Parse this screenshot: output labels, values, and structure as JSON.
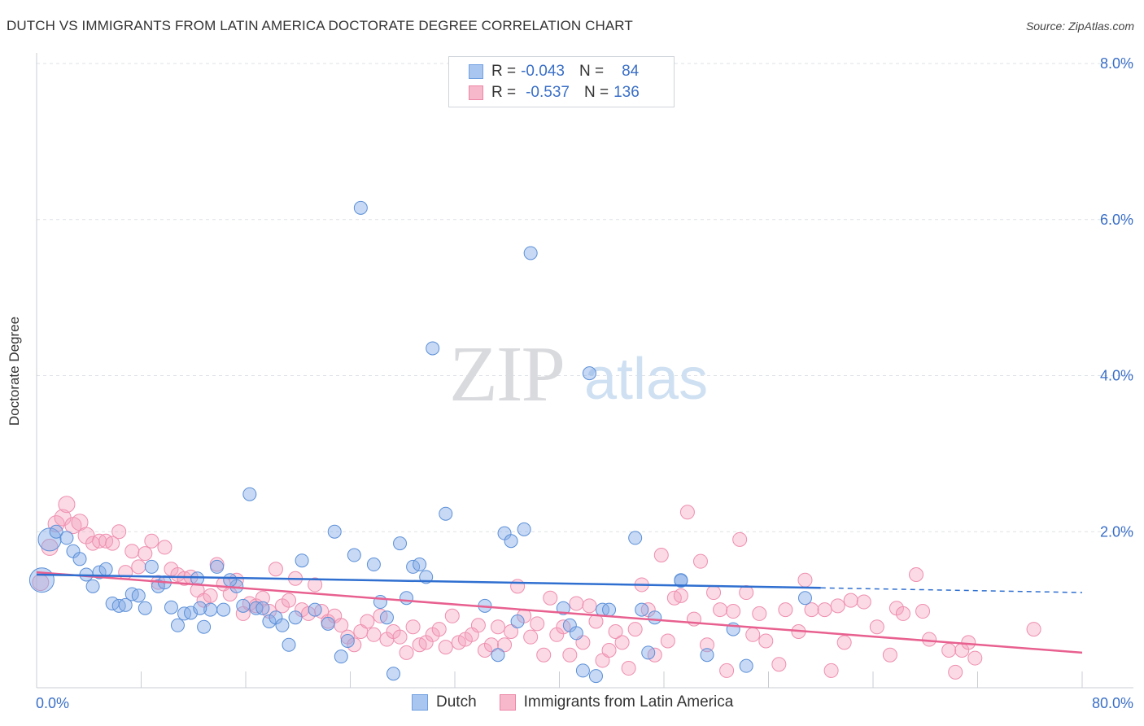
{
  "header": {
    "title": "DUTCH VS IMMIGRANTS FROM LATIN AMERICA DOCTORATE DEGREE CORRELATION CHART",
    "source": "Source: ZipAtlas.com"
  },
  "watermark": {
    "zip": "ZIP",
    "atlas": "atlas"
  },
  "legend": {
    "rows": [
      {
        "r_label": "R =",
        "r_value": "-0.043",
        "n_label": "N =",
        "n_value": "84",
        "color": "#a9c6f0",
        "border": "#6f9fe0"
      },
      {
        "r_label": "R =",
        "r_value": "-0.537",
        "n_label": "N =",
        "n_value": "136",
        "color": "#f7b8cb",
        "border": "#ec86a6"
      }
    ]
  },
  "bottom_legend": [
    {
      "label": "Dutch",
      "color": "#a9c6f0",
      "border": "#6f9fe0"
    },
    {
      "label": "Immigrants from Latin America",
      "color": "#f7b8cb",
      "border": "#ec86a6"
    }
  ],
  "colors": {
    "dutch_fill": "rgba(130,170,230,0.45)",
    "dutch_stroke": "#5b8fd8",
    "dutch_line": "#2f6fd0",
    "latin_fill": "rgba(245,160,190,0.40)",
    "latin_stroke": "#ee8fae",
    "latin_line": "#e8608f",
    "axis_label": "#3a6fc7",
    "grid": "#dde1e6"
  },
  "chart_data": {
    "type": "scatter",
    "xlabel": "",
    "ylabel": "Doctorate Degree",
    "xlim": [
      0,
      80
    ],
    "ylim": [
      0,
      8
    ],
    "x_tick_labels": [
      "0.0%",
      "80.0%"
    ],
    "y_tick_labels": [
      "2.0%",
      "4.0%",
      "6.0%",
      "8.0%"
    ],
    "y_ticks": [
      2,
      4,
      6,
      8
    ],
    "series": [
      {
        "name": "Dutch",
        "trend": {
          "x0": 0,
          "y0": 1.45,
          "x1": 60,
          "y1": 1.28,
          "dash_to_x": 80,
          "dash_to_y": 1.22
        },
        "points": [
          [
            0.4,
            1.38
          ],
          [
            1,
            1.9
          ],
          [
            1.5,
            2.0
          ],
          [
            2.3,
            1.92
          ],
          [
            2.8,
            1.75
          ],
          [
            3.3,
            1.65
          ],
          [
            3.8,
            1.45
          ],
          [
            4.3,
            1.3
          ],
          [
            4.8,
            1.48
          ],
          [
            5.3,
            1.52
          ],
          [
            5.8,
            1.08
          ],
          [
            6.3,
            1.05
          ],
          [
            6.8,
            1.06
          ],
          [
            7.3,
            1.2
          ],
          [
            7.8,
            1.18
          ],
          [
            8.3,
            1.02
          ],
          [
            8.8,
            1.55
          ],
          [
            9.3,
            1.3
          ],
          [
            9.8,
            1.35
          ],
          [
            10.3,
            1.03
          ],
          [
            10.8,
            0.8
          ],
          [
            11.3,
            0.95
          ],
          [
            11.8,
            0.96
          ],
          [
            12.3,
            1.4
          ],
          [
            12.8,
            0.78
          ],
          [
            13.3,
            1.0
          ],
          [
            13.8,
            1.55
          ],
          [
            14.3,
            1.0
          ],
          [
            15.3,
            1.3
          ],
          [
            15.8,
            1.05
          ],
          [
            16.3,
            2.48
          ],
          [
            16.8,
            1.02
          ],
          [
            17.3,
            1.02
          ],
          [
            17.8,
            0.85
          ],
          [
            18.3,
            0.9
          ],
          [
            18.8,
            0.8
          ],
          [
            19.3,
            0.55
          ],
          [
            19.8,
            0.9
          ],
          [
            20.3,
            1.63
          ],
          [
            21.3,
            1.0
          ],
          [
            22.3,
            0.82
          ],
          [
            22.8,
            2.0
          ],
          [
            23.3,
            0.4
          ],
          [
            23.8,
            0.6
          ],
          [
            24.3,
            1.7
          ],
          [
            24.8,
            6.15
          ],
          [
            25.8,
            1.58
          ],
          [
            26.3,
            1.1
          ],
          [
            26.8,
            0.9
          ],
          [
            27.3,
            0.18
          ],
          [
            27.8,
            1.85
          ],
          [
            28.3,
            1.15
          ],
          [
            28.8,
            1.55
          ],
          [
            29.3,
            1.58
          ],
          [
            29.8,
            1.42
          ],
          [
            30.3,
            4.35
          ],
          [
            31.3,
            2.23
          ],
          [
            34.3,
            1.05
          ],
          [
            35.3,
            0.42
          ],
          [
            35.8,
            1.98
          ],
          [
            36.3,
            1.88
          ],
          [
            36.8,
            0.85
          ],
          [
            37.3,
            2.03
          ],
          [
            37.8,
            5.57
          ],
          [
            40.3,
            1.02
          ],
          [
            40.8,
            0.8
          ],
          [
            41.3,
            0.7
          ],
          [
            41.8,
            0.22
          ],
          [
            42.3,
            4.03
          ],
          [
            42.8,
            0.15
          ],
          [
            43.3,
            1.0
          ],
          [
            46.3,
            1.0
          ],
          [
            46.8,
            0.45
          ],
          [
            47.3,
            0.9
          ],
          [
            49.3,
            1.37
          ],
          [
            51.3,
            0.42
          ],
          [
            53.3,
            0.75
          ],
          [
            54.3,
            0.28
          ],
          [
            58.8,
            1.15
          ],
          [
            49.3,
            1.38
          ],
          [
            45.8,
            1.92
          ],
          [
            43.8,
            1.0
          ],
          [
            14.8,
            1.38
          ],
          [
            12.5,
            1.02
          ]
        ]
      },
      {
        "name": "Immigrants from Latin America",
        "trend": {
          "x0": 0,
          "y0": 1.48,
          "x1": 80,
          "y1": 0.45
        },
        "points": [
          [
            0.3,
            1.35
          ],
          [
            1,
            1.8
          ],
          [
            1.5,
            2.1
          ],
          [
            2,
            2.18
          ],
          [
            2.3,
            2.35
          ],
          [
            2.8,
            2.08
          ],
          [
            3.3,
            2.12
          ],
          [
            3.8,
            1.95
          ],
          [
            4.3,
            1.85
          ],
          [
            4.8,
            1.88
          ],
          [
            5.3,
            1.88
          ],
          [
            5.8,
            1.85
          ],
          [
            6.3,
            2.0
          ],
          [
            6.8,
            1.48
          ],
          [
            7.3,
            1.75
          ],
          [
            7.8,
            1.55
          ],
          [
            8.3,
            1.72
          ],
          [
            8.8,
            1.88
          ],
          [
            9.3,
            1.35
          ],
          [
            9.8,
            1.8
          ],
          [
            10.3,
            1.52
          ],
          [
            10.8,
            1.45
          ],
          [
            11.3,
            1.4
          ],
          [
            11.8,
            1.42
          ],
          [
            12.3,
            1.25
          ],
          [
            12.8,
            1.12
          ],
          [
            13.3,
            1.18
          ],
          [
            13.8,
            1.58
          ],
          [
            14.3,
            1.33
          ],
          [
            14.8,
            1.2
          ],
          [
            15.3,
            1.38
          ],
          [
            15.8,
            0.95
          ],
          [
            16.3,
            1.08
          ],
          [
            16.8,
            1.05
          ],
          [
            17.3,
            1.15
          ],
          [
            17.8,
            0.98
          ],
          [
            18.3,
            1.52
          ],
          [
            18.8,
            1.05
          ],
          [
            19.3,
            1.12
          ],
          [
            19.8,
            1.4
          ],
          [
            20.3,
            1.0
          ],
          [
            20.8,
            0.95
          ],
          [
            21.3,
            1.32
          ],
          [
            21.8,
            0.98
          ],
          [
            22.3,
            0.85
          ],
          [
            22.8,
            0.92
          ],
          [
            23.3,
            0.8
          ],
          [
            23.8,
            0.65
          ],
          [
            24.3,
            0.55
          ],
          [
            24.8,
            0.72
          ],
          [
            25.3,
            0.85
          ],
          [
            25.8,
            0.68
          ],
          [
            26.3,
            0.92
          ],
          [
            26.8,
            0.62
          ],
          [
            27.3,
            0.72
          ],
          [
            27.8,
            0.65
          ],
          [
            28.3,
            0.45
          ],
          [
            28.8,
            0.78
          ],
          [
            29.3,
            0.55
          ],
          [
            29.8,
            0.58
          ],
          [
            30.3,
            0.68
          ],
          [
            30.8,
            0.75
          ],
          [
            31.3,
            0.52
          ],
          [
            31.8,
            0.92
          ],
          [
            32.3,
            0.58
          ],
          [
            32.8,
            0.62
          ],
          [
            33.3,
            0.68
          ],
          [
            33.8,
            0.8
          ],
          [
            34.3,
            0.48
          ],
          [
            34.8,
            0.55
          ],
          [
            35.3,
            0.78
          ],
          [
            35.8,
            0.55
          ],
          [
            36.3,
            0.72
          ],
          [
            36.8,
            1.3
          ],
          [
            37.3,
            0.92
          ],
          [
            37.8,
            0.65
          ],
          [
            38.3,
            0.82
          ],
          [
            38.8,
            0.42
          ],
          [
            39.3,
            1.15
          ],
          [
            39.8,
            0.68
          ],
          [
            40.3,
            0.78
          ],
          [
            40.8,
            0.42
          ],
          [
            41.3,
            1.08
          ],
          [
            41.8,
            0.58
          ],
          [
            42.3,
            1.05
          ],
          [
            42.8,
            0.85
          ],
          [
            43.3,
            0.35
          ],
          [
            43.8,
            0.48
          ],
          [
            44.3,
            0.72
          ],
          [
            44.8,
            0.58
          ],
          [
            45.3,
            0.25
          ],
          [
            45.8,
            0.75
          ],
          [
            46.3,
            1.32
          ],
          [
            46.8,
            1.0
          ],
          [
            47.3,
            0.42
          ],
          [
            47.8,
            1.7
          ],
          [
            48.3,
            0.6
          ],
          [
            48.8,
            1.15
          ],
          [
            49.3,
            1.18
          ],
          [
            49.8,
            2.25
          ],
          [
            50.3,
            0.88
          ],
          [
            50.8,
            1.62
          ],
          [
            51.3,
            0.55
          ],
          [
            51.8,
            1.22
          ],
          [
            52.3,
            1.0
          ],
          [
            52.8,
            0.22
          ],
          [
            53.3,
            0.98
          ],
          [
            53.8,
            1.9
          ],
          [
            54.3,
            1.22
          ],
          [
            54.8,
            0.68
          ],
          [
            55.3,
            0.95
          ],
          [
            56.8,
            0.3
          ],
          [
            57.3,
            1.0
          ],
          [
            58.3,
            0.72
          ],
          [
            58.8,
            1.38
          ],
          [
            59.3,
            1.0
          ],
          [
            60.8,
            0.22
          ],
          [
            61.3,
            1.05
          ],
          [
            61.8,
            0.58
          ],
          [
            62.3,
            1.12
          ],
          [
            63.3,
            1.1
          ],
          [
            64.3,
            0.78
          ],
          [
            65.3,
            0.42
          ],
          [
            65.8,
            1.02
          ],
          [
            66.3,
            0.95
          ],
          [
            67.3,
            1.45
          ],
          [
            67.8,
            0.98
          ],
          [
            68.3,
            0.62
          ],
          [
            69.8,
            0.48
          ],
          [
            70.3,
            0.2
          ],
          [
            70.8,
            0.48
          ],
          [
            71.3,
            0.58
          ],
          [
            71.8,
            0.38
          ],
          [
            76.3,
            0.75
          ],
          [
            60.3,
            1.0
          ],
          [
            55.8,
            0.6
          ]
        ]
      }
    ]
  }
}
